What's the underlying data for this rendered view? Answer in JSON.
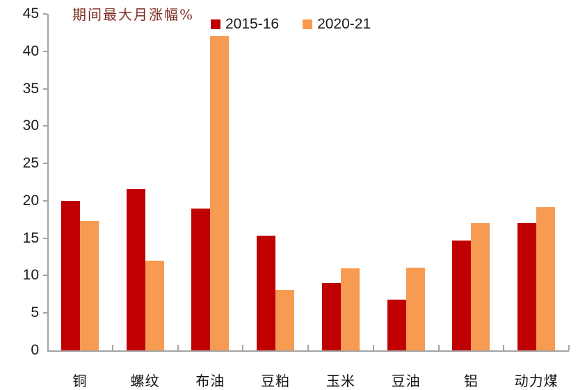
{
  "chart_data": {
    "type": "bar",
    "title": "期间最大月涨幅%",
    "categories": [
      "铜",
      "螺纹",
      "布油",
      "豆粕",
      "玉米",
      "豆油",
      "铝",
      "动力煤"
    ],
    "series": [
      {
        "name": "2015-16",
        "color": "#C00000",
        "values": [
          20.0,
          21.6,
          19.0,
          15.3,
          9.0,
          6.8,
          14.7,
          17.0
        ]
      },
      {
        "name": "2020-21",
        "color": "#F79B52",
        "values": [
          17.3,
          12.0,
          42.0,
          8.1,
          11.0,
          11.1,
          17.0,
          19.2
        ]
      }
    ],
    "xlabel": "",
    "ylabel": "",
    "ylim": [
      0,
      45
    ],
    "ytick_step": 5,
    "yticks": [
      "0",
      "5",
      "10",
      "15",
      "20",
      "25",
      "30",
      "35",
      "40",
      "45"
    ],
    "legend_position": "top",
    "grid": false
  },
  "colors": {
    "title_text": "#7D2B21",
    "axis": "#A3A3A3",
    "tick_label": "#1A1A1A",
    "background": "#FFFFFF"
  }
}
